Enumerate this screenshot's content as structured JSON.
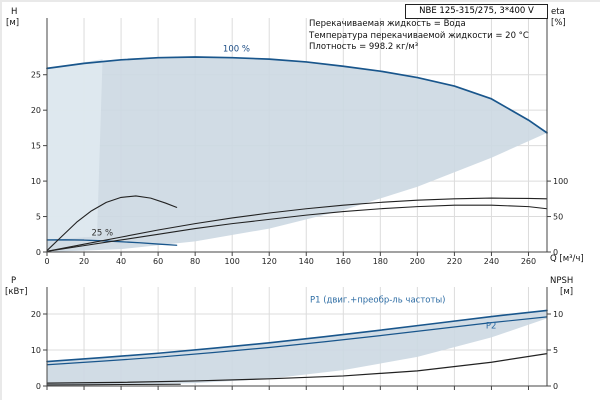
{
  "title_box": "NBE 125-315/275, 3*400 V",
  "info": {
    "line1": "Перекачиваемая жидкость = Вода",
    "line2": "Температура перекачиваемой жидкости = 20 °C",
    "line3": "Плотность = 998.2 кг/м³"
  },
  "axis_labels": {
    "head_left_1": "H",
    "head_left_2": "[м]",
    "head_right_1": "eta",
    "head_right_2": "[%]",
    "power_left_1": "P",
    "power_left_2": "[кВт]",
    "power_right_1": "NPSH",
    "power_right_2": "[м]",
    "x_unit": "Q [м³/ч]"
  },
  "chart_data": [
    {
      "id": "head",
      "type": "line",
      "title": "",
      "xlabel": "Q [м³/ч]",
      "ylabel": "H [м]",
      "ylabel_right": "eta [%]",
      "xlim": [
        0,
        270
      ],
      "ylim": [
        0,
        33
      ],
      "right_ratio": 0.1,
      "x_tick_labels": true,
      "grid": true,
      "x_ticks": [
        0,
        20,
        40,
        60,
        80,
        100,
        120,
        140,
        160,
        180,
        200,
        220,
        240,
        260
      ],
      "y_ticks_left": [
        0,
        5,
        10,
        15,
        20,
        25
      ],
      "y_ticks_right": [
        0,
        50,
        100
      ],
      "series": [
        {
          "name": "head-curve-100pct",
          "color": "#19568c",
          "width": 1.7,
          "x": [
            0,
            20,
            40,
            60,
            80,
            100,
            120,
            140,
            160,
            180,
            200,
            220,
            240,
            260,
            270
          ],
          "y": [
            25.9,
            26.6,
            27.1,
            27.4,
            27.5,
            27.4,
            27.2,
            26.8,
            26.2,
            25.5,
            24.6,
            23.4,
            21.6,
            18.6,
            16.8
          ]
        },
        {
          "name": "head-curve-25pct",
          "color": "#19568c",
          "width": 1.3,
          "x": [
            0,
            10,
            20,
            30,
            40,
            50,
            60,
            70
          ],
          "y": [
            1.7,
            1.72,
            1.68,
            1.58,
            1.45,
            1.3,
            1.12,
            0.95
          ]
        },
        {
          "name": "eta-curve-pump",
          "color": "#222222",
          "width": 1.1,
          "axis": "right",
          "x": [
            0,
            20,
            40,
            60,
            80,
            100,
            120,
            140,
            160,
            180,
            200,
            220,
            240,
            260,
            270
          ],
          "y": [
            1,
            11,
            21,
            31,
            40,
            48,
            55,
            61,
            66,
            70,
            73,
            75,
            76,
            75.5,
            75
          ]
        },
        {
          "name": "eta-curve-pump-motor",
          "color": "#222222",
          "width": 1.1,
          "axis": "right",
          "x": [
            0,
            20,
            40,
            60,
            80,
            100,
            120,
            140,
            160,
            180,
            200,
            220,
            240,
            260,
            270
          ],
          "y": [
            1,
            9,
            17,
            25,
            33,
            40,
            46,
            52,
            57,
            61,
            64,
            66,
            66,
            64,
            61
          ]
        },
        {
          "name": "eta-curve-25pct",
          "color": "#222222",
          "width": 1.1,
          "axis": "right",
          "x": [
            0,
            8,
            16,
            24,
            32,
            40,
            48,
            56,
            64,
            70
          ],
          "y": [
            2,
            22,
            42,
            58,
            70,
            77,
            79,
            76,
            69,
            63
          ]
        }
      ],
      "regions": [
        {
          "name": "operating-envelope",
          "fill": "#ccd8e2",
          "opacity": 0.9,
          "x": [
            0,
            20,
            40,
            60,
            80,
            100,
            120,
            140,
            160,
            180,
            200,
            220,
            240,
            260,
            270,
            270,
            240,
            200,
            160,
            120,
            80,
            40,
            0
          ],
          "y": [
            25.9,
            26.6,
            27.1,
            27.4,
            27.5,
            27.4,
            27.2,
            26.8,
            26.2,
            25.5,
            24.6,
            23.4,
            21.6,
            18.6,
            16.8,
            16.8,
            13.3,
            9.2,
            5.9,
            3.3,
            1.5,
            0.4,
            0
          ]
        },
        {
          "name": "low-flow-band",
          "fill": "#dfe9f0",
          "opacity": 0.9,
          "x": [
            0,
            27,
            30,
            0
          ],
          "y": [
            1.7,
            2.2,
            27.2,
            25.9
          ]
        }
      ],
      "annotations": [
        {
          "name": "speed-label-100",
          "text": "100 %",
          "x": 95,
          "y": 28.3,
          "color": "#1c4d85"
        },
        {
          "name": "speed-label-25",
          "text": "25 %",
          "x": 24,
          "y": 2.3,
          "color": "#333333"
        }
      ]
    },
    {
      "id": "power",
      "type": "line",
      "title": "",
      "xlabel": "Q [м³/ч]",
      "ylabel": "P [кВт]",
      "ylabel_right": "NPSH [м]",
      "xlim": [
        0,
        270
      ],
      "ylim": [
        0,
        27.5
      ],
      "right_ratio": 2,
      "x_tick_labels": false,
      "grid": true,
      "x_ticks": [
        0,
        20,
        40,
        60,
        80,
        100,
        120,
        140,
        160,
        180,
        200,
        220,
        240,
        260
      ],
      "y_ticks_left": [
        0,
        10,
        20
      ],
      "y_ticks_right": [
        0,
        5,
        10
      ],
      "series": [
        {
          "name": "p1-curve",
          "color": "#19568c",
          "width": 1.6,
          "x": [
            0,
            30,
            60,
            90,
            120,
            150,
            180,
            210,
            240,
            270
          ],
          "y": [
            6.8,
            7.9,
            9.1,
            10.5,
            12.0,
            13.7,
            15.5,
            17.4,
            19.3,
            21.0
          ]
        },
        {
          "name": "p2-curve",
          "color": "#19568c",
          "width": 1.2,
          "x": [
            0,
            30,
            60,
            90,
            120,
            150,
            180,
            210,
            240,
            270
          ],
          "y": [
            5.9,
            6.9,
            8.0,
            9.3,
            10.7,
            12.3,
            14.0,
            15.8,
            17.6,
            19.2
          ]
        },
        {
          "name": "npsh-curve",
          "color": "#222222",
          "width": 1.2,
          "axis": "right",
          "x": [
            0,
            40,
            80,
            120,
            160,
            200,
            240,
            270
          ],
          "y": [
            0.4,
            0.5,
            0.7,
            1.0,
            1.4,
            2.1,
            3.3,
            4.5
          ]
        },
        {
          "name": "power-curve-25pct",
          "color": "#222222",
          "width": 1.0,
          "x": [
            0,
            20,
            40,
            60,
            72
          ],
          "y": [
            0.3,
            0.35,
            0.4,
            0.45,
            0.5
          ]
        }
      ],
      "regions": [
        {
          "name": "power-envelope",
          "fill": "#ccd8e2",
          "opacity": 0.9,
          "x": [
            0,
            30,
            60,
            90,
            120,
            150,
            180,
            210,
            240,
            270,
            270,
            240,
            200,
            160,
            120,
            80,
            40,
            0
          ],
          "y": [
            6.8,
            7.9,
            9.1,
            10.5,
            12.0,
            13.7,
            15.5,
            17.4,
            19.3,
            21.0,
            18.8,
            13.5,
            8.1,
            4.4,
            2.0,
            0.8,
            0.3,
            0.2
          ]
        }
      ],
      "annotations": [
        {
          "name": "p1-label",
          "text": "P1 (двиг.+преобр-ль частоты)",
          "x": 142,
          "y": 23.2,
          "color": "#2e6da4"
        },
        {
          "name": "p2-label",
          "text": "P2",
          "x": 237,
          "y": 16.0,
          "color": "#2e6da4"
        }
      ]
    }
  ]
}
